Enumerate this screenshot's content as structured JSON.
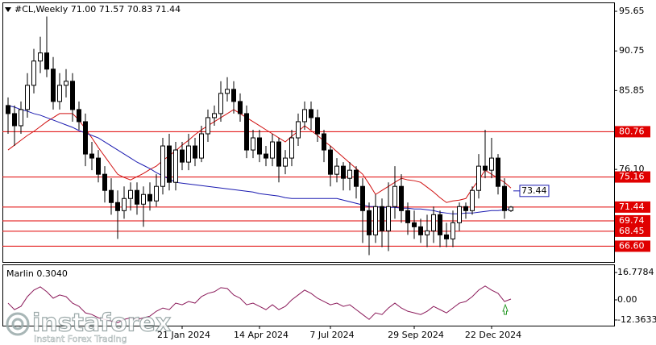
{
  "chart_data": [
    {
      "type": "candlestick",
      "title": "#CL,Weekly  71.00 71.57 70.83 71.44",
      "watermark": "instaforex",
      "watermark_tagline": "Instant Forex Trading",
      "categories": [
        null,
        null,
        null,
        null,
        null,
        null,
        null,
        null,
        null,
        null,
        null,
        null,
        null,
        null,
        null,
        null,
        null,
        null,
        null,
        null,
        null,
        null,
        null,
        null,
        null,
        null,
        null,
        "21 Jan 2024",
        null,
        null,
        null,
        null,
        null,
        null,
        null,
        null,
        null,
        null,
        null,
        "14 Apr 2024",
        null,
        null,
        null,
        null,
        null,
        null,
        null,
        null,
        null,
        null,
        "7 Jul 2024",
        null,
        null,
        null,
        null,
        null,
        null,
        null,
        null,
        null,
        null,
        null,
        null,
        "29 Sep 2024",
        null,
        null,
        null,
        null,
        null,
        null,
        null,
        null,
        null,
        null,
        null,
        "22 Dec 2024",
        null,
        null,
        null
      ],
      "open": [
        84.0,
        83.0,
        81.5,
        83.5,
        86.5,
        89.5,
        90.5,
        88.5,
        84.5,
        86.5,
        87.0,
        83.5,
        82.0,
        78.0,
        77.5,
        75.5,
        73.5,
        72.0,
        71.0,
        72.5,
        73.5,
        71.8,
        73.0,
        72.2,
        74.0,
        79.0,
        74.5,
        78.5,
        77.0,
        79.0,
        77.5,
        80.5,
        82.5,
        83.0,
        85.5,
        86.0,
        84.5,
        83.0,
        78.5,
        80.0,
        78.0,
        77.5,
        79.5,
        76.5,
        77.5,
        80.0,
        82.0,
        83.5,
        82.5,
        80.5,
        78.5,
        75.5,
        76.5,
        75.0,
        76.0,
        74.0,
        71.0,
        68.0,
        71.5,
        68.5,
        71.5,
        74.0,
        71.0,
        69.5,
        69.0,
        68.0,
        68.5,
        70.5,
        68.0,
        67.5,
        69.5,
        71.5,
        71.0,
        73.5,
        76.5,
        76.0,
        77.5,
        74.0,
        71.0
      ],
      "high": [
        85.0,
        84.0,
        84.5,
        88.0,
        91.0,
        92.5,
        95.0,
        90.0,
        88.0,
        88.5,
        88.0,
        84.5,
        83.0,
        79.5,
        78.5,
        76.5,
        75.0,
        73.5,
        74.0,
        74.5,
        74.5,
        74.0,
        74.5,
        75.5,
        80.0,
        80.5,
        79.5,
        79.5,
        80.5,
        80.0,
        81.5,
        83.5,
        84.0,
        87.0,
        87.5,
        87.0,
        85.5,
        84.0,
        81.0,
        81.0,
        79.0,
        80.5,
        80.0,
        78.5,
        81.0,
        83.0,
        84.5,
        84.5,
        83.5,
        81.0,
        79.0,
        77.5,
        77.0,
        77.0,
        76.5,
        75.0,
        72.0,
        73.0,
        72.5,
        74.5,
        76.5,
        75.5,
        72.0,
        71.0,
        70.0,
        70.5,
        71.5,
        71.0,
        69.5,
        71.0,
        72.0,
        72.0,
        74.0,
        78.0,
        81.0,
        80.0,
        78.0,
        75.0,
        71.57
      ],
      "low": [
        80.5,
        79.0,
        80.5,
        82.5,
        85.5,
        88.0,
        87.5,
        83.5,
        83.5,
        85.0,
        82.0,
        81.0,
        76.5,
        76.0,
        74.5,
        72.0,
        70.5,
        67.5,
        70.0,
        71.0,
        70.5,
        69.0,
        71.0,
        71.5,
        73.0,
        73.5,
        73.5,
        76.0,
        76.0,
        76.5,
        77.0,
        79.5,
        81.5,
        82.0,
        84.5,
        83.0,
        82.0,
        77.5,
        77.5,
        77.0,
        76.5,
        76.5,
        74.5,
        75.5,
        76.5,
        79.0,
        81.0,
        81.0,
        79.5,
        77.0,
        74.0,
        74.5,
        73.5,
        73.5,
        72.5,
        67.0,
        65.5,
        67.0,
        66.5,
        66.0,
        70.0,
        69.5,
        68.0,
        67.5,
        67.0,
        66.5,
        67.0,
        66.5,
        66.5,
        66.5,
        68.5,
        70.0,
        70.5,
        72.5,
        75.0,
        75.0,
        73.0,
        70.0,
        70.83
      ],
      "close": [
        83.0,
        81.5,
        83.5,
        86.5,
        89.5,
        90.5,
        88.5,
        84.5,
        86.5,
        87.0,
        83.5,
        82.0,
        78.0,
        77.5,
        75.5,
        73.5,
        72.0,
        71.0,
        72.5,
        73.5,
        71.8,
        73.0,
        72.2,
        74.0,
        79.0,
        74.5,
        78.5,
        77.0,
        79.0,
        77.5,
        80.5,
        82.5,
        83.0,
        85.5,
        86.0,
        84.5,
        83.0,
        78.5,
        80.0,
        78.0,
        77.5,
        79.5,
        76.5,
        77.5,
        80.0,
        82.0,
        83.5,
        82.5,
        80.5,
        78.5,
        75.5,
        76.5,
        75.0,
        76.0,
        74.0,
        71.0,
        68.0,
        71.5,
        68.5,
        71.5,
        74.0,
        71.0,
        69.5,
        69.0,
        68.0,
        68.5,
        70.5,
        68.0,
        67.5,
        69.5,
        71.5,
        71.0,
        73.5,
        76.5,
        76.0,
        77.5,
        74.0,
        71.0,
        71.44
      ],
      "moving_averages": [
        {
          "color": "#d01010",
          "values": [
            78.5,
            79.1,
            79.7,
            80.3,
            80.8,
            81.4,
            82.0,
            82.5,
            83.0,
            83.0,
            83.0,
            82.2,
            81.1,
            80.0,
            78.8,
            77.7,
            76.6,
            75.5,
            75.1,
            74.8,
            75.2,
            75.6,
            76.1,
            76.5,
            77.2,
            77.8,
            78.4,
            79.1,
            79.7,
            80.4,
            81.0,
            81.5,
            82.0,
            82.5,
            83.0,
            83.5,
            83.0,
            82.5,
            82.0,
            81.5,
            81.0,
            80.5,
            80.0,
            79.5,
            80.2,
            80.8,
            81.5,
            80.9,
            80.3,
            79.6,
            79.0,
            78.3,
            77.6,
            76.9,
            76.2,
            75.5,
            74.3,
            73.0,
            73.5,
            74.0,
            74.5,
            75.0,
            74.8,
            74.7,
            74.5,
            73.9,
            73.3,
            72.6,
            72.0,
            72.2,
            72.3,
            72.5,
            73.7,
            74.8,
            76.0,
            75.5,
            75.0,
            74.5,
            73.8
          ]
        },
        {
          "color": "#1a1ab0",
          "values": [
            84.0,
            83.8,
            83.5,
            83.3,
            83.0,
            82.8,
            82.5,
            82.2,
            81.9,
            81.6,
            81.3,
            80.9,
            80.6,
            80.3,
            80.0,
            79.5,
            79.0,
            78.5,
            78.0,
            77.5,
            77.0,
            76.6,
            76.2,
            75.7,
            75.3,
            74.9,
            74.5,
            74.4,
            74.3,
            74.2,
            74.1,
            74.0,
            73.9,
            73.8,
            73.7,
            73.6,
            73.5,
            73.4,
            73.3,
            73.1,
            73.0,
            72.9,
            72.8,
            72.6,
            72.5,
            72.5,
            72.5,
            72.5,
            72.5,
            72.5,
            72.5,
            72.5,
            72.3,
            72.1,
            71.9,
            71.7,
            71.5,
            71.5,
            71.4,
            71.4,
            71.4,
            71.3,
            71.3,
            71.2,
            71.2,
            71.1,
            71.0,
            70.8,
            70.7,
            70.6,
            70.6,
            70.7,
            70.7,
            70.8,
            70.9,
            71.0,
            71.0,
            71.1,
            71.2
          ]
        }
      ],
      "ylim": [
        64.55,
        96.75
      ],
      "yticks": [
        95.65,
        90.75,
        85.85,
        {
          "value": 76.1,
          "label": "76.10"
        }
      ],
      "levels": [
        80.76,
        75.16,
        71.44,
        69.74,
        68.45,
        {
          "value": 66.6,
          "label": "66.60"
        }
      ],
      "level_color": "#e00000",
      "annotation": 73.44,
      "grid": false
    },
    {
      "type": "line",
      "title": "Marlin 0.3040",
      "color": "#8b1a5a",
      "values": [
        -2,
        -6,
        -4,
        2,
        6,
        8,
        5,
        1,
        3,
        2,
        -2,
        -4,
        -8,
        -9,
        -11,
        -12,
        -13,
        -14,
        -12,
        -11,
        -12,
        -11,
        -10,
        -7,
        -5,
        -6,
        -2,
        -3,
        -1,
        -2,
        2,
        4,
        5,
        7.5,
        7,
        3,
        1,
        -3,
        -2,
        -4,
        -6,
        -3,
        -6,
        -4,
        0,
        3,
        6,
        4,
        1,
        -1,
        -3,
        -2,
        -4,
        -3,
        -6,
        -9,
        -12,
        -8,
        -9,
        -5,
        -2,
        -5,
        -7,
        -8,
        -9,
        -7,
        -4,
        -6,
        -8,
        -5,
        -2,
        -1,
        2,
        6,
        8.5,
        6,
        4,
        -1,
        0.5
      ],
      "ylim": [
        -15.84,
        21.29
      ],
      "yticks": [
        16.7784,
        {
          "value": 0,
          "label": "0.00"
        },
        -12.3633
      ]
    }
  ]
}
